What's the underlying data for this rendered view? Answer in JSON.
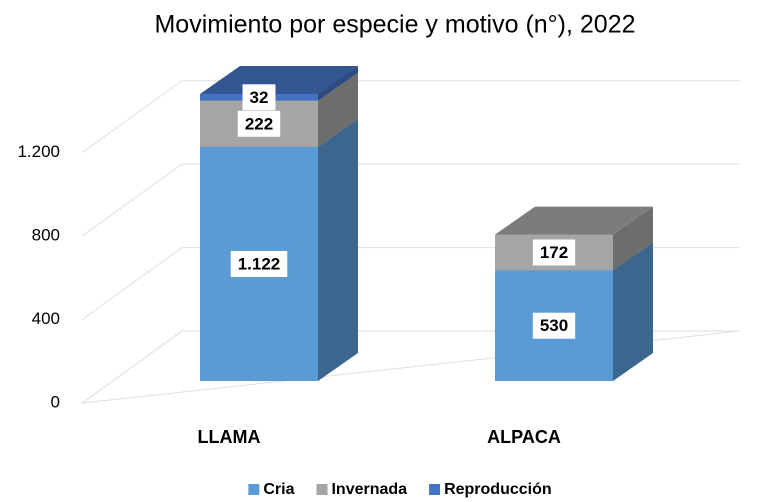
{
  "chart_data": {
    "type": "bar3d",
    "title": "Movimiento por especie y motivo (n°), 2022",
    "categories": [
      "LLAMA",
      "ALPACA"
    ],
    "series": [
      {
        "name": "Cria",
        "color": "#5b9bd5",
        "values": [
          1122,
          530
        ],
        "value_labels": [
          "1.122",
          "530"
        ]
      },
      {
        "name": "Invernada",
        "color": "#a5a5a5",
        "values": [
          222,
          172
        ],
        "value_labels": [
          "222",
          "172"
        ]
      },
      {
        "name": "Reproducción",
        "color": "#4472c4",
        "values": [
          32,
          null
        ],
        "value_labels": [
          "32",
          null
        ]
      }
    ],
    "stacked": true,
    "ylim": [
      0,
      1400
    ],
    "yticks": [
      0,
      400,
      800,
      {
        "value": 1200,
        "label": "1.200"
      }
    ],
    "grid": true,
    "legend": "bottom"
  }
}
